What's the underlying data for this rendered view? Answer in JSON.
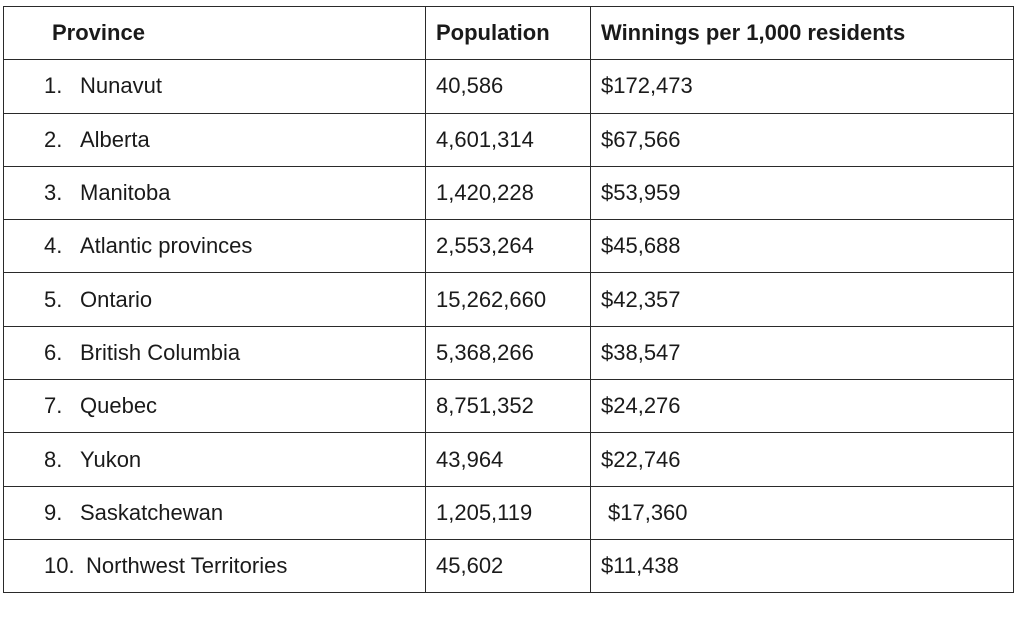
{
  "table": {
    "headers": {
      "province": "Province",
      "population": "Population",
      "winnings": "Winnings per 1,000 residents"
    },
    "rows": [
      {
        "num": "1.",
        "province": "Nunavut",
        "population": "40,586",
        "winnings": "$172,473"
      },
      {
        "num": "2.",
        "province": "Alberta",
        "population": "4,601,314",
        "winnings": "$67,566"
      },
      {
        "num": "3.",
        "province": "Manitoba",
        "population": "1,420,228",
        "winnings": "$53,959"
      },
      {
        "num": "4.",
        "province": "Atlantic provinces",
        "population": "2,553,264",
        "winnings": "$45,688"
      },
      {
        "num": "5.",
        "province": "Ontario",
        "population": "15,262,660",
        "winnings": "$42,357"
      },
      {
        "num": "6.",
        "province": "British Columbia",
        "population": "5,368,266",
        "winnings": "$38,547"
      },
      {
        "num": "7.",
        "province": "Quebec",
        "population": "8,751,352",
        "winnings": "$24,276"
      },
      {
        "num": "8.",
        "province": "Yukon",
        "population": "43,964",
        "winnings": "$22,746"
      },
      {
        "num": "9.",
        "province": "Saskatchewan",
        "population": "1,205,119",
        "winnings": "$17,360"
      },
      {
        "num": "10.",
        "province": "Northwest Territories",
        "population": "45,602",
        "winnings": "$11,438"
      }
    ]
  }
}
